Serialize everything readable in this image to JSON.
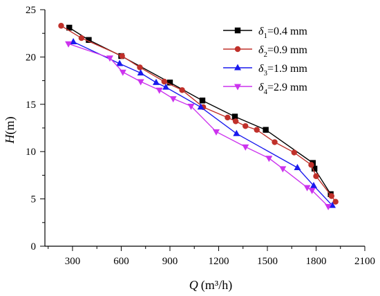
{
  "chart_data": {
    "type": "line",
    "xlabel": {
      "var": "Q",
      "unit": "(m³/h)"
    },
    "ylabel": {
      "var": "H",
      "unit": "(m)"
    },
    "xlim": [
      130,
      2100
    ],
    "ylim": [
      0,
      25
    ],
    "xticks": [
      300,
      600,
      900,
      1200,
      1500,
      1800,
      2100
    ],
    "xminor": [
      150,
      450,
      750,
      1050,
      1350,
      1650,
      1950
    ],
    "yticks": [
      0,
      5,
      10,
      15,
      20,
      25
    ],
    "yminor": [
      2.5,
      7.5,
      12.5,
      17.5,
      22.5
    ],
    "grid": false,
    "legend_position": "top-right",
    "series": [
      {
        "name": "δ1=0.4 mm",
        "legend": {
          "sym": "δ",
          "sub": "1",
          "rest": "=0.4 mm"
        },
        "color": "#000000",
        "marker": "square",
        "x": [
          280,
          400,
          600,
          900,
          1100,
          1300,
          1490,
          1780,
          1790,
          1890
        ],
        "y": [
          23.1,
          21.8,
          20.1,
          17.3,
          15.4,
          13.7,
          12.3,
          8.8,
          8.2,
          5.5
        ]
      },
      {
        "name": "δ2=0.9 mm",
        "legend": {
          "sym": "δ",
          "sub": "2",
          "rest": "=0.9 mm"
        },
        "color": "#c0302a",
        "marker": "circle",
        "x": [
          230,
          355,
          605,
          715,
          865,
          975,
          1105,
          1255,
          1305,
          1365,
          1435,
          1545,
          1665,
          1770,
          1800,
          1895,
          1920
        ],
        "y": [
          23.3,
          22.0,
          20.1,
          18.9,
          17.4,
          16.5,
          14.7,
          13.6,
          13.2,
          12.7,
          12.3,
          11.0,
          9.9,
          8.6,
          7.4,
          5.3,
          4.7
        ]
      },
      {
        "name": "δ3=1.9 mm",
        "legend": {
          "sym": "δ",
          "sub": "3",
          "rest": "=1.9 mm"
        },
        "color": "#1a1aee",
        "marker": "triangle-up",
        "x": [
          305,
          590,
          720,
          815,
          875,
          1090,
          1310,
          1685,
          1785,
          1900
        ],
        "y": [
          21.6,
          19.3,
          18.3,
          17.3,
          16.8,
          14.7,
          11.9,
          8.3,
          6.4,
          4.3
        ]
      },
      {
        "name": "δ4=2.9 mm",
        "legend": {
          "sym": "δ",
          "sub": "4",
          "rest": "=2.9 mm"
        },
        "color": "#cc33ee",
        "marker": "triangle-down",
        "x": [
          275,
          530,
          610,
          720,
          835,
          920,
          1030,
          1185,
          1365,
          1510,
          1595,
          1745,
          1775,
          1875
        ],
        "y": [
          21.4,
          19.9,
          18.4,
          17.4,
          16.5,
          15.6,
          14.8,
          12.1,
          10.5,
          9.3,
          8.2,
          6.2,
          5.9,
          4.2
        ]
      }
    ]
  }
}
